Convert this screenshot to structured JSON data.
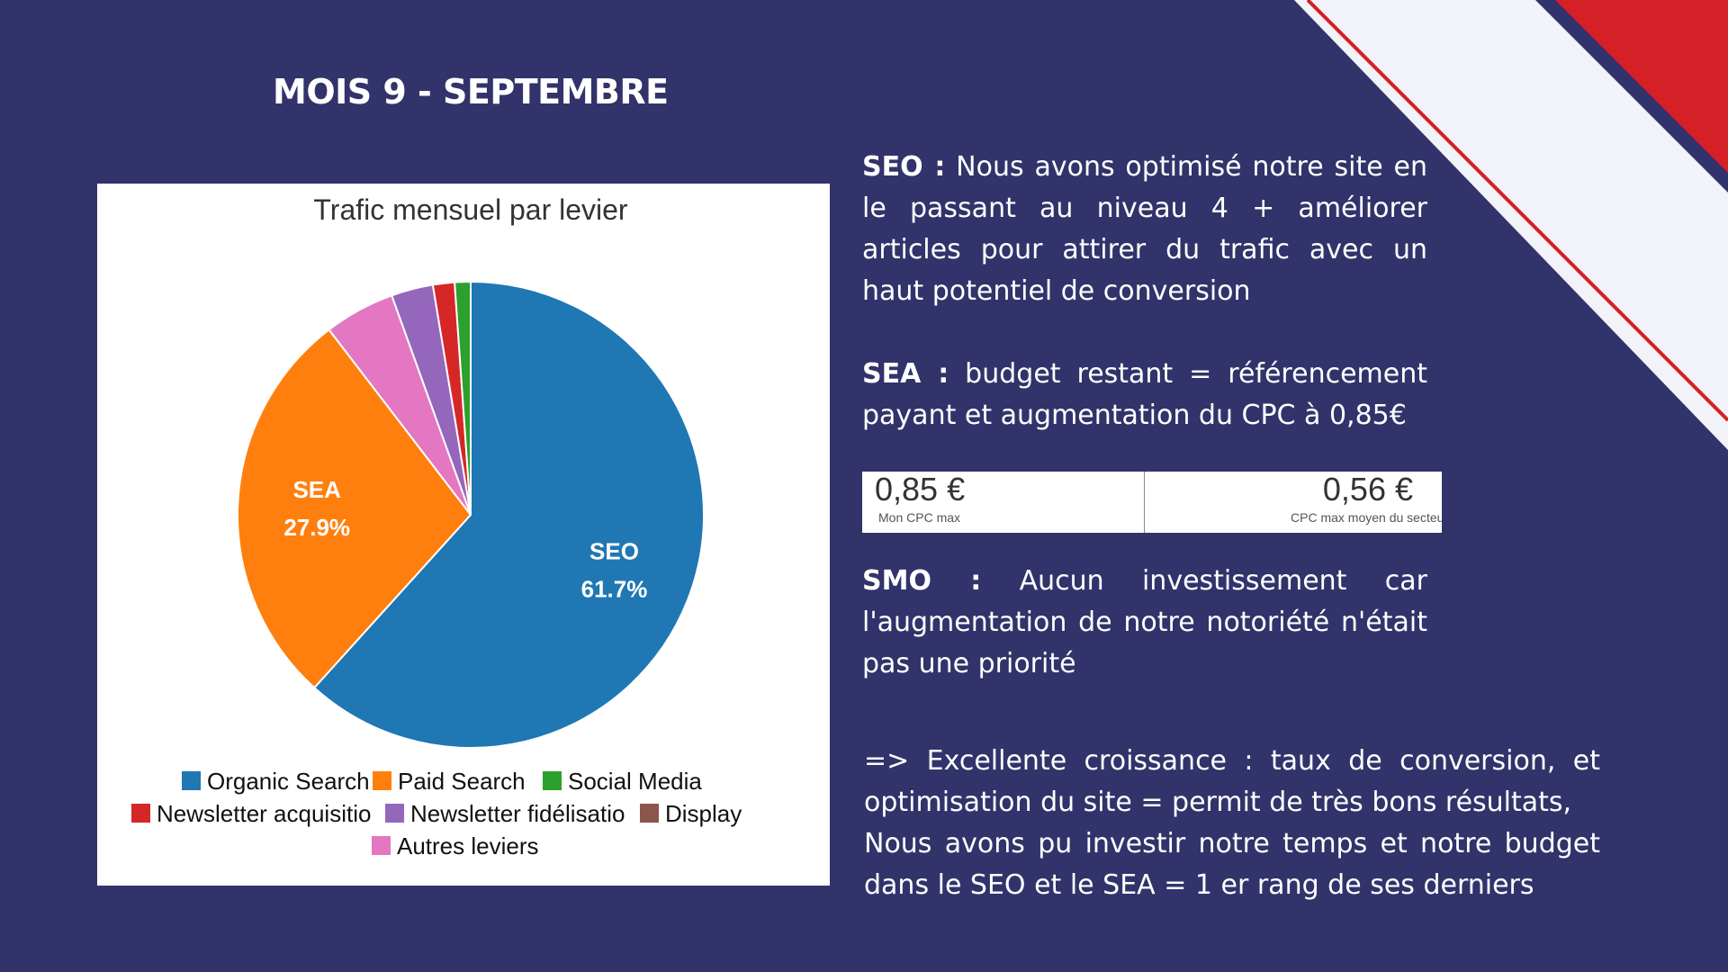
{
  "page": {
    "title": "MOIS 9 - SEPTEMBRE",
    "colors": {
      "background": "#32336a",
      "accent_red": "#d52027",
      "stripe_light": "#f2f3f8"
    }
  },
  "chart_data": {
    "type": "pie",
    "title": "Trafic mensuel par levier",
    "slices": [
      {
        "name": "Organic Search",
        "value": 61.7,
        "color": "#1f77b4",
        "label": "SEO",
        "pct_label": "61.7%"
      },
      {
        "name": "Paid Search",
        "value": 27.9,
        "color": "#ff7f0e",
        "label": "SEA",
        "pct_label": "27.9%"
      },
      {
        "name": "Autres leviers",
        "value": 4.9,
        "color": "#e377c2"
      },
      {
        "name": "Newsletter fidélisatio",
        "value": 2.9,
        "color": "#9467bd"
      },
      {
        "name": "Newsletter acquisitio",
        "value": 1.5,
        "color": "#d62728"
      },
      {
        "name": "Social Media",
        "value": 1.1,
        "color": "#2ca02c"
      },
      {
        "name": "Display",
        "value": 0.0,
        "color": "#8c564b"
      }
    ],
    "legend": {
      "placement": "bottom",
      "rows": [
        [
          "Organic Search",
          "Paid Search",
          "Social Media"
        ],
        [
          "Newsletter acquisitio",
          "Newsletter fidélisatio",
          "Display"
        ],
        [
          "Autres leviers"
        ]
      ]
    }
  },
  "text": {
    "seo_label": "SEO :",
    "seo_body": " Nous avons optimisé notre site en le passant au niveau 4 + améliorer articles pour attirer du trafic avec un haut potentiel de conversion",
    "sea_label": "SEA :",
    "sea_body": " budget restant = référencement payant et augmentation du CPC à  0,85€",
    "smo_label": "SMO :",
    "smo_body": " Aucun investissement car l'augmentation de notre notoriété n'était pas une priorité",
    "conclusion_line1": "=> Excellente croissance : taux de conversion, et optimisation du site = permit de très bons résultats,",
    "conclusion_line2": "Nous avons pu investir notre temps et notre budget dans le SEO et le SEA = 1 er rang de ses derniers"
  },
  "cpc": {
    "mine_value": "0,85 €",
    "mine_label": "Mon CPC max",
    "sector_value": "0,56 €",
    "sector_label": "CPC max moyen du secteu"
  }
}
